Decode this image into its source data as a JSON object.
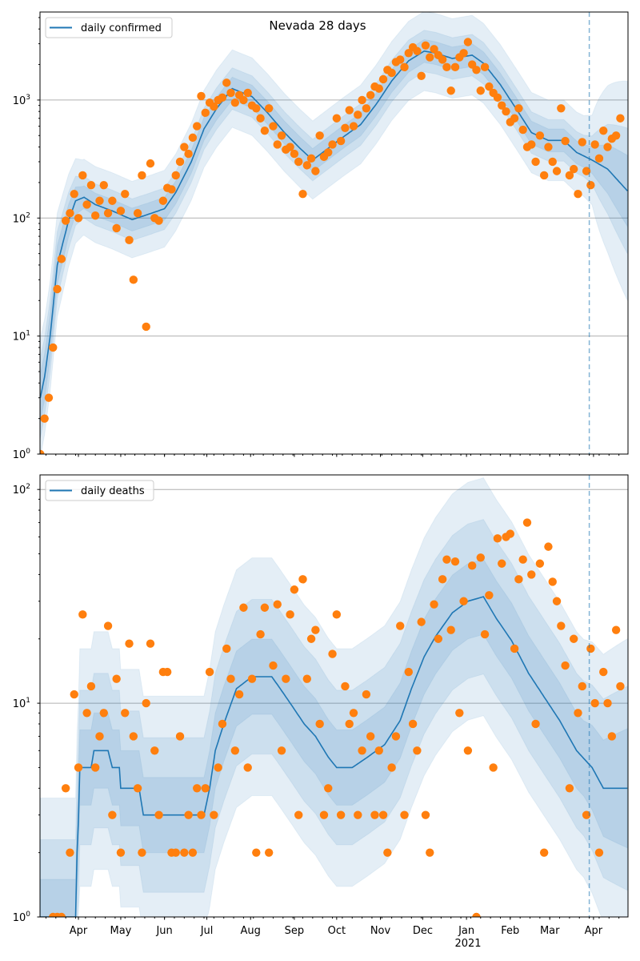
{
  "chart_data": [
    {
      "type": "line+scatter",
      "title": "Nevada 28 days",
      "legend": {
        "label": "daily confirmed",
        "placement": "top-left"
      },
      "yscale": "log",
      "ylim": [
        1,
        5570
      ],
      "yticks": [
        1,
        10,
        100,
        1000
      ],
      "grid": "y-major",
      "x_start_date": "2020-03-05",
      "x_unit": "days since start date",
      "xlim": [
        0,
        416
      ],
      "forecast_start_day": 389,
      "trend": [
        [
          0,
          3
        ],
        [
          3,
          4.5
        ],
        [
          7,
          10
        ],
        [
          12,
          40
        ],
        [
          20,
          95
        ],
        [
          25,
          140
        ],
        [
          31,
          150
        ],
        [
          39,
          130
        ],
        [
          51,
          115
        ],
        [
          65,
          97
        ],
        [
          76,
          107
        ],
        [
          88,
          120
        ],
        [
          96,
          165
        ],
        [
          107,
          300
        ],
        [
          116,
          570
        ],
        [
          125,
          850
        ],
        [
          136,
          1250
        ],
        [
          150,
          1070
        ],
        [
          161,
          780
        ],
        [
          173,
          530
        ],
        [
          184,
          390
        ],
        [
          193,
          310
        ],
        [
          204,
          390
        ],
        [
          215,
          490
        ],
        [
          227,
          620
        ],
        [
          238,
          920
        ],
        [
          249,
          1450
        ],
        [
          261,
          2150
        ],
        [
          272,
          2600
        ],
        [
          280,
          2500
        ],
        [
          292,
          2250
        ],
        [
          306,
          2400
        ],
        [
          314,
          2050
        ],
        [
          326,
          1350
        ],
        [
          337,
          850
        ],
        [
          348,
          530
        ],
        [
          360,
          455
        ],
        [
          371,
          455
        ],
        [
          380,
          360
        ],
        [
          391,
          310
        ],
        [
          402,
          260
        ],
        [
          416,
          170
        ]
      ],
      "band_factors": [
        [
          0,
          1.6,
          2.2,
          3.2
        ],
        [
          30,
          1.25,
          1.5,
          2.1
        ],
        [
          385,
          1.25,
          1.5,
          2.2
        ],
        [
          391,
          1.3,
          1.6,
          2.4
        ],
        [
          416,
          2.0,
          3.4,
          8.5
        ]
      ],
      "scatter_step_days": 3,
      "scatter": [
        1,
        2,
        3,
        8,
        25,
        45,
        95,
        110,
        160,
        100,
        230,
        130,
        190,
        105,
        140,
        190,
        110,
        140,
        82,
        115,
        160,
        65,
        30,
        110,
        230,
        12,
        290,
        100,
        95,
        140,
        180,
        175,
        230,
        300,
        400,
        350,
        480,
        600,
        1080,
        780,
        950,
        880,
        1000,
        1050,
        1400,
        1150,
        950,
        1100,
        1000,
        1150,
        900,
        850,
        700,
        550,
        850,
        600,
        420,
        500,
        380,
        400,
        350,
        300,
        160,
        280,
        320,
        250,
        500,
        330,
        360,
        420,
        700,
        450,
        580,
        820,
        600,
        750,
        1000,
        850,
        1100,
        1300,
        1250,
        1500,
        1800,
        1700,
        2100,
        2200,
        1900,
        2500,
        2800,
        2600,
        1600,
        2900,
        2300,
        2700,
        2400,
        2200,
        1900,
        1200,
        1900,
        2300,
        2500,
        3100,
        2000,
        1800,
        1200,
        1900,
        1300,
        1150,
        1050,
        900,
        800,
        650,
        700,
        850,
        560,
        400,
        420,
        300,
        500,
        230,
        400,
        300,
        250,
        850,
        450,
        230,
        260,
        160,
        440,
        250,
        190,
        420,
        320,
        550,
        400,
        470,
        500,
        700
      ]
    },
    {
      "type": "line+scatter",
      "legend": {
        "label": "daily deaths",
        "placement": "top-left"
      },
      "yscale": "log",
      "ylim": [
        1,
        117
      ],
      "yticks": [
        1,
        10,
        100
      ],
      "grid": "y-major",
      "x_start_date": "2020-03-05",
      "xlim": [
        0,
        416
      ],
      "forecast_start_day": 389,
      "xtick_labels": [
        "Apr",
        "May",
        "Jun",
        "Jul",
        "Aug",
        "Sep",
        "Oct",
        "Nov",
        "Dec",
        "Jan",
        "Feb",
        "Mar",
        "Apr"
      ],
      "xtick_days": [
        27,
        57,
        88,
        118,
        149,
        180,
        210,
        241,
        271,
        302,
        333,
        361,
        392
      ],
      "year_label": "2021",
      "trend": [
        [
          0,
          1
        ],
        [
          25,
          1
        ],
        [
          26,
          2
        ],
        [
          27,
          2.8
        ],
        [
          28,
          5
        ],
        [
          36,
          5
        ],
        [
          38,
          6
        ],
        [
          48,
          6
        ],
        [
          51,
          5
        ],
        [
          56,
          5
        ],
        [
          57,
          4
        ],
        [
          70,
          4
        ],
        [
          73,
          3
        ],
        [
          116,
          3
        ],
        [
          120,
          4
        ],
        [
          124,
          6
        ],
        [
          130,
          8
        ],
        [
          139,
          11.7
        ],
        [
          150,
          13.3
        ],
        [
          164,
          13.3
        ],
        [
          170,
          11.7
        ],
        [
          178,
          9.8
        ],
        [
          187,
          8
        ],
        [
          195,
          7
        ],
        [
          204,
          5.6
        ],
        [
          210,
          5
        ],
        [
          221,
          5
        ],
        [
          232,
          5.6
        ],
        [
          244,
          6.4
        ],
        [
          255,
          8.3
        ],
        [
          263,
          11.7
        ],
        [
          272,
          16.5
        ],
        [
          280,
          20.5
        ],
        [
          292,
          26.5
        ],
        [
          303,
          30
        ],
        [
          314,
          31.5
        ],
        [
          323,
          25
        ],
        [
          334,
          19.6
        ],
        [
          346,
          13.8
        ],
        [
          357,
          10.7
        ],
        [
          368,
          8.3
        ],
        [
          380,
          6
        ],
        [
          391,
          5
        ],
        [
          399,
          4
        ],
        [
          416,
          4
        ]
      ],
      "band_factors": [
        [
          0,
          1.5,
          2.3,
          3.6
        ],
        [
          385,
          1.5,
          2.3,
          3.6
        ],
        [
          416,
          1.9,
          3.0,
          5.0
        ]
      ],
      "scatter_step_days": 3,
      "scatter": [
        0,
        0,
        0,
        1,
        1,
        1,
        4,
        2,
        11,
        5,
        26,
        9,
        12,
        5,
        7,
        9,
        23,
        3,
        13,
        2,
        9,
        19,
        7,
        4,
        2,
        10,
        19,
        6,
        3,
        14,
        14,
        2,
        2,
        7,
        2,
        3,
        2,
        4,
        3,
        4,
        14,
        3,
        5,
        8,
        18,
        13,
        6,
        11,
        28,
        5,
        13,
        2,
        21,
        28,
        2,
        15,
        29,
        6,
        13,
        26,
        34,
        3,
        38,
        13,
        20,
        22,
        8,
        3,
        4,
        17,
        26,
        3,
        12,
        8,
        9,
        3,
        6,
        11,
        7,
        3,
        6,
        3,
        2,
        5,
        7,
        23,
        3,
        14,
        8,
        6,
        24,
        3,
        2,
        29,
        20,
        38,
        47,
        22,
        46,
        9,
        30,
        6,
        44,
        1,
        48,
        21,
        32,
        5,
        59,
        45,
        60,
        62,
        18,
        38,
        47,
        70,
        40,
        8,
        45,
        2,
        54,
        37,
        30,
        23,
        15,
        4,
        20,
        9,
        12,
        3,
        18,
        10,
        2,
        14,
        10,
        7,
        22,
        12
      ]
    }
  ],
  "colors": {
    "line": "#1f77b4",
    "scatter": "#ff7f0e",
    "band": "#1f77b4",
    "grid": "#b0b0b0"
  }
}
